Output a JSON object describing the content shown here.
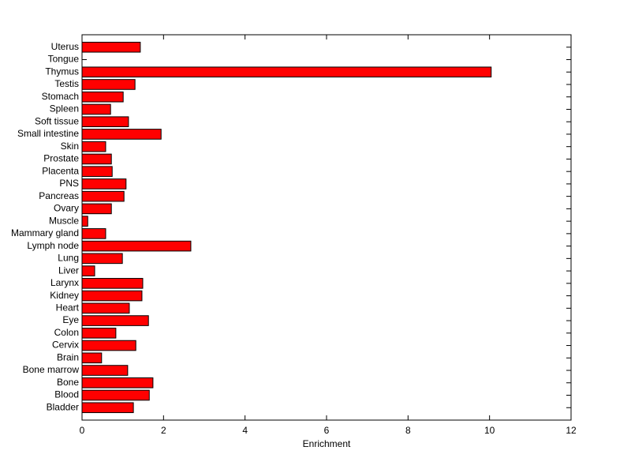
{
  "chart_data": {
    "type": "barh",
    "xlabel": "Enrichment",
    "categories": [
      "Bladder",
      "Blood",
      "Bone",
      "Bone marrow",
      "Brain",
      "Cervix",
      "Colon",
      "Eye",
      "Heart",
      "Kidney",
      "Larynx",
      "Liver",
      "Lung",
      "Lymph node",
      "Mammary gland",
      "Muscle",
      "Ovary",
      "Pancreas",
      "PNS",
      "Placenta",
      "Prostate",
      "Skin",
      "Small intestine",
      "Soft tissue",
      "Spleen",
      "Stomach",
      "Testis",
      "Thymus",
      "Tongue",
      "Uterus"
    ],
    "values": [
      1.26,
      1.65,
      1.74,
      1.12,
      0.48,
      1.32,
      0.83,
      1.63,
      1.16,
      1.47,
      1.49,
      0.31,
      0.99,
      2.67,
      0.58,
      0.14,
      0.72,
      1.03,
      1.08,
      0.74,
      0.72,
      0.58,
      1.94,
      1.14,
      0.7,
      1.01,
      1.3,
      10.04,
      0,
      1.43
    ],
    "color": "#ff0000",
    "xlim": [
      0,
      12
    ],
    "xticks": [
      0,
      2,
      4,
      6,
      8,
      10,
      12
    ]
  }
}
